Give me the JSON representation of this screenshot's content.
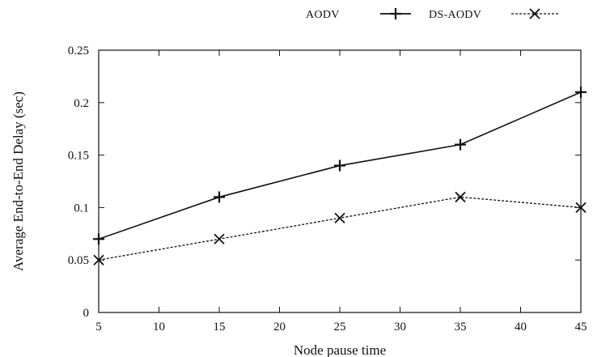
{
  "chart_data": {
    "type": "line",
    "title": "",
    "xlabel": "Node pause time",
    "ylabel": "Average End-to-End Delay (sec)",
    "x": [
      5,
      15,
      25,
      35,
      45
    ],
    "x_ticks": [
      5,
      10,
      15,
      20,
      25,
      30,
      35,
      40,
      45
    ],
    "y_ticks": [
      0,
      0.05,
      0.1,
      0.15,
      0.2,
      0.25
    ],
    "xlim": [
      5,
      45
    ],
    "ylim": [
      0,
      0.25
    ],
    "grid": false,
    "legend_position": "top-right, above plot",
    "series": [
      {
        "name": "AODV",
        "values": [
          0.07,
          0.11,
          0.14,
          0.16,
          0.21
        ],
        "color": "#111111",
        "line_style": "solid",
        "marker": "plus"
      },
      {
        "name": "DS-AODV",
        "values": [
          0.05,
          0.07,
          0.09,
          0.11,
          0.1
        ],
        "color": "#111111",
        "line_style": "dashed",
        "marker": "cross"
      }
    ]
  }
}
